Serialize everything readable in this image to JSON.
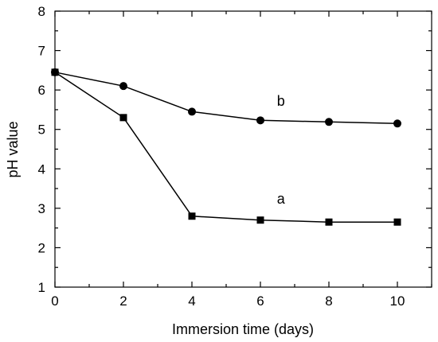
{
  "chart_data": {
    "type": "line",
    "xlabel": "Immersion time (days)",
    "ylabel": "pH value",
    "xlim": [
      0,
      11
    ],
    "ylim": [
      1,
      8
    ],
    "xticks": [
      0,
      2,
      4,
      6,
      8,
      10
    ],
    "yticks": [
      1,
      2,
      3,
      4,
      5,
      6,
      7,
      8
    ],
    "x_minor_ticks": [
      1,
      3,
      5,
      7,
      9,
      11
    ],
    "y_minor_ticks": [
      1.5,
      2.5,
      3.5,
      4.5,
      5.5,
      6.5,
      7.5
    ],
    "grid": false,
    "legend": "none",
    "series": [
      {
        "name": "a",
        "marker": "square",
        "color": "#000000",
        "x": [
          0,
          2,
          4,
          6,
          8,
          10
        ],
        "y": [
          6.45,
          5.3,
          2.8,
          2.7,
          2.65,
          2.65
        ]
      },
      {
        "name": "b",
        "marker": "circle",
        "color": "#000000",
        "x": [
          0,
          2,
          4,
          6,
          8,
          10
        ],
        "y": [
          6.45,
          6.1,
          5.45,
          5.23,
          5.19,
          5.15
        ]
      }
    ],
    "series_label_positions": [
      {
        "series": "a",
        "x": 6.6,
        "y": 3.12
      },
      {
        "series": "b",
        "x": 6.6,
        "y": 5.6
      }
    ]
  }
}
